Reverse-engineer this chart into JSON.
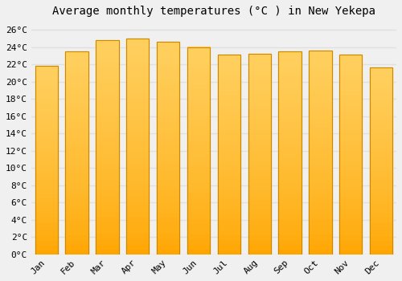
{
  "title": "Average monthly temperatures (°C ) in New Yekepa",
  "months": [
    "Jan",
    "Feb",
    "Mar",
    "Apr",
    "May",
    "Jun",
    "Jul",
    "Aug",
    "Sep",
    "Oct",
    "Nov",
    "Dec"
  ],
  "temperatures": [
    21.8,
    23.5,
    24.8,
    25.0,
    24.6,
    24.0,
    23.1,
    23.2,
    23.5,
    23.6,
    23.1,
    21.6
  ],
  "bar_color_main": "#FFA500",
  "bar_color_light": "#FFD060",
  "bar_color_dark": "#F08000",
  "bar_edge_color": "#CC8800",
  "bar_edge_width": 0.8,
  "ylim": [
    0,
    27
  ],
  "yticks": [
    0,
    2,
    4,
    6,
    8,
    10,
    12,
    14,
    16,
    18,
    20,
    22,
    24,
    26
  ],
  "ytick_labels": [
    "0°C",
    "2°C",
    "4°C",
    "6°C",
    "8°C",
    "10°C",
    "12°C",
    "14°C",
    "16°C",
    "18°C",
    "20°C",
    "22°C",
    "24°C",
    "26°C"
  ],
  "background_color": "#f0f0f0",
  "grid_color": "#e0e0e0",
  "title_fontsize": 10,
  "tick_fontsize": 8,
  "font_family": "monospace"
}
